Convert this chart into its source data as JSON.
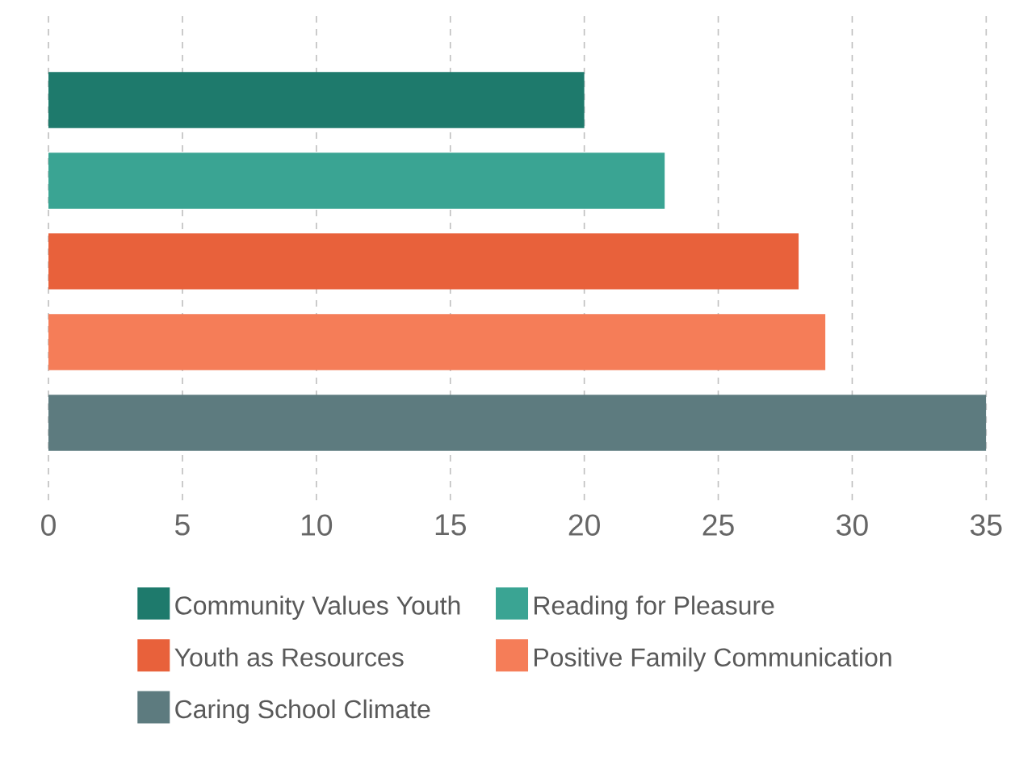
{
  "chart_data": {
    "type": "bar",
    "orientation": "horizontal",
    "categories": [
      null,
      null,
      null,
      null,
      null
    ],
    "series": [
      {
        "name": "Community Values Youth",
        "color": "#1e7a6c",
        "values": [
          20,
          null,
          null,
          null,
          null
        ]
      },
      {
        "name": "Reading for Pleasure",
        "color": "#3aa493",
        "values": [
          null,
          23,
          null,
          null,
          null
        ]
      },
      {
        "name": "Youth as Resources",
        "color": "#e8613b",
        "values": [
          null,
          null,
          28,
          null,
          null
        ]
      },
      {
        "name": "Positive Family Communication",
        "color": "#f57d58",
        "values": [
          null,
          null,
          null,
          29,
          null
        ]
      },
      {
        "name": "Caring School Climate",
        "color": "#5d7b7f",
        "values": [
          null,
          null,
          null,
          null,
          35
        ]
      }
    ],
    "xlim": [
      0,
      35
    ],
    "xticks": [
      0,
      5,
      10,
      15,
      20,
      25,
      30,
      35
    ],
    "grid": "x",
    "legend": "bottom",
    "tick_labels": "x"
  }
}
